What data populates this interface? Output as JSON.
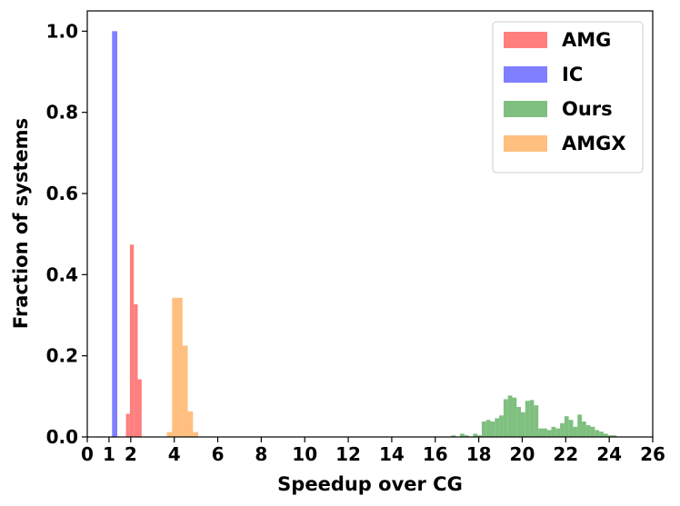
{
  "chart_data": {
    "type": "histogram",
    "xlabel": "Speedup over CG",
    "ylabel": "Fraction of systems",
    "xlim": [
      0,
      26
    ],
    "ylim": [
      0,
      1.05
    ],
    "x_ticks": [
      {
        "value": 0,
        "label": "0"
      },
      {
        "value": 1,
        "label": "1",
        "color": "#ff0000"
      },
      {
        "value": 2,
        "label": "2"
      },
      {
        "value": 4,
        "label": "4"
      },
      {
        "value": 6,
        "label": "6"
      },
      {
        "value": 8,
        "label": "8"
      },
      {
        "value": 10,
        "label": "10"
      },
      {
        "value": 12,
        "label": "12"
      },
      {
        "value": 14,
        "label": "14"
      },
      {
        "value": 16,
        "label": "16"
      },
      {
        "value": 18,
        "label": "18"
      },
      {
        "value": 20,
        "label": "20"
      },
      {
        "value": 22,
        "label": "22"
      },
      {
        "value": 24,
        "label": "24"
      },
      {
        "value": 26,
        "label": "26"
      }
    ],
    "y_ticks": [
      {
        "value": 0,
        "label": "0.0"
      },
      {
        "value": 0.2,
        "label": "0.2"
      },
      {
        "value": 0.4,
        "label": "0.4"
      },
      {
        "value": 0.6,
        "label": "0.6"
      },
      {
        "value": 0.8,
        "label": "0.8"
      },
      {
        "value": 1.0,
        "label": "1.0"
      }
    ],
    "grid": false,
    "legend": "top-right",
    "series": [
      {
        "name": "AMG",
        "color": "#ff7f7f",
        "bins": [
          {
            "x0": 1.78,
            "x1": 1.96,
            "value": 0.057
          },
          {
            "x0": 1.96,
            "x1": 2.14,
            "value": 0.474
          },
          {
            "x0": 2.14,
            "x1": 2.32,
            "value": 0.327
          },
          {
            "x0": 2.32,
            "x1": 2.5,
            "value": 0.142
          }
        ]
      },
      {
        "name": "IC",
        "color": "#7f7fff",
        "bins": [
          {
            "x0": 1.14,
            "x1": 1.38,
            "value": 1.0
          }
        ]
      },
      {
        "name": "Ours",
        "color": "#7fbf7f",
        "bins": [
          {
            "x0": 16.74,
            "x1": 16.94,
            "value": 0.004
          },
          {
            "x0": 17.14,
            "x1": 17.34,
            "value": 0.008
          },
          {
            "x0": 17.34,
            "x1": 17.54,
            "value": 0.004
          },
          {
            "x0": 17.74,
            "x1": 17.94,
            "value": 0.008
          },
          {
            "x0": 17.94,
            "x1": 18.14,
            "value": 0.004
          },
          {
            "x0": 18.14,
            "x1": 18.34,
            "value": 0.038
          },
          {
            "x0": 18.34,
            "x1": 18.54,
            "value": 0.042
          },
          {
            "x0": 18.54,
            "x1": 18.74,
            "value": 0.038
          },
          {
            "x0": 18.74,
            "x1": 18.94,
            "value": 0.046
          },
          {
            "x0": 18.94,
            "x1": 19.14,
            "value": 0.053
          },
          {
            "x0": 19.14,
            "x1": 19.34,
            "value": 0.093
          },
          {
            "x0": 19.34,
            "x1": 19.54,
            "value": 0.102
          },
          {
            "x0": 19.54,
            "x1": 19.74,
            "value": 0.097
          },
          {
            "x0": 19.74,
            "x1": 19.94,
            "value": 0.074
          },
          {
            "x0": 19.94,
            "x1": 20.14,
            "value": 0.061
          },
          {
            "x0": 20.14,
            "x1": 20.34,
            "value": 0.089
          },
          {
            "x0": 20.34,
            "x1": 20.54,
            "value": 0.091
          },
          {
            "x0": 20.54,
            "x1": 20.74,
            "value": 0.078
          },
          {
            "x0": 20.74,
            "x1": 20.94,
            "value": 0.021
          },
          {
            "x0": 20.94,
            "x1": 21.14,
            "value": 0.021
          },
          {
            "x0": 21.14,
            "x1": 21.34,
            "value": 0.017
          },
          {
            "x0": 21.34,
            "x1": 21.54,
            "value": 0.025
          },
          {
            "x0": 21.54,
            "x1": 21.74,
            "value": 0.021
          },
          {
            "x0": 21.74,
            "x1": 21.94,
            "value": 0.034
          },
          {
            "x0": 21.94,
            "x1": 22.14,
            "value": 0.051
          },
          {
            "x0": 22.14,
            "x1": 22.34,
            "value": 0.042
          },
          {
            "x0": 22.34,
            "x1": 22.54,
            "value": 0.025
          },
          {
            "x0": 22.54,
            "x1": 22.74,
            "value": 0.055
          },
          {
            "x0": 22.74,
            "x1": 22.94,
            "value": 0.038
          },
          {
            "x0": 22.94,
            "x1": 23.14,
            "value": 0.029
          },
          {
            "x0": 23.14,
            "x1": 23.34,
            "value": 0.025
          },
          {
            "x0": 23.34,
            "x1": 23.54,
            "value": 0.017
          },
          {
            "x0": 23.54,
            "x1": 23.74,
            "value": 0.013
          },
          {
            "x0": 23.74,
            "x1": 23.94,
            "value": 0.008
          },
          {
            "x0": 23.94,
            "x1": 24.14,
            "value": 0.004
          },
          {
            "x0": 24.14,
            "x1": 24.34,
            "value": 0.004
          }
        ]
      },
      {
        "name": "AMGX",
        "color": "#ffbf7f",
        "bins": [
          {
            "x0": 3.66,
            "x1": 3.9,
            "value": 0.012
          },
          {
            "x0": 3.9,
            "x1": 4.14,
            "value": 0.343
          },
          {
            "x0": 4.14,
            "x1": 4.38,
            "value": 0.343
          },
          {
            "x0": 4.38,
            "x1": 4.62,
            "value": 0.225
          },
          {
            "x0": 4.62,
            "x1": 4.86,
            "value": 0.063
          },
          {
            "x0": 4.86,
            "x1": 5.1,
            "value": 0.012
          }
        ]
      }
    ]
  }
}
